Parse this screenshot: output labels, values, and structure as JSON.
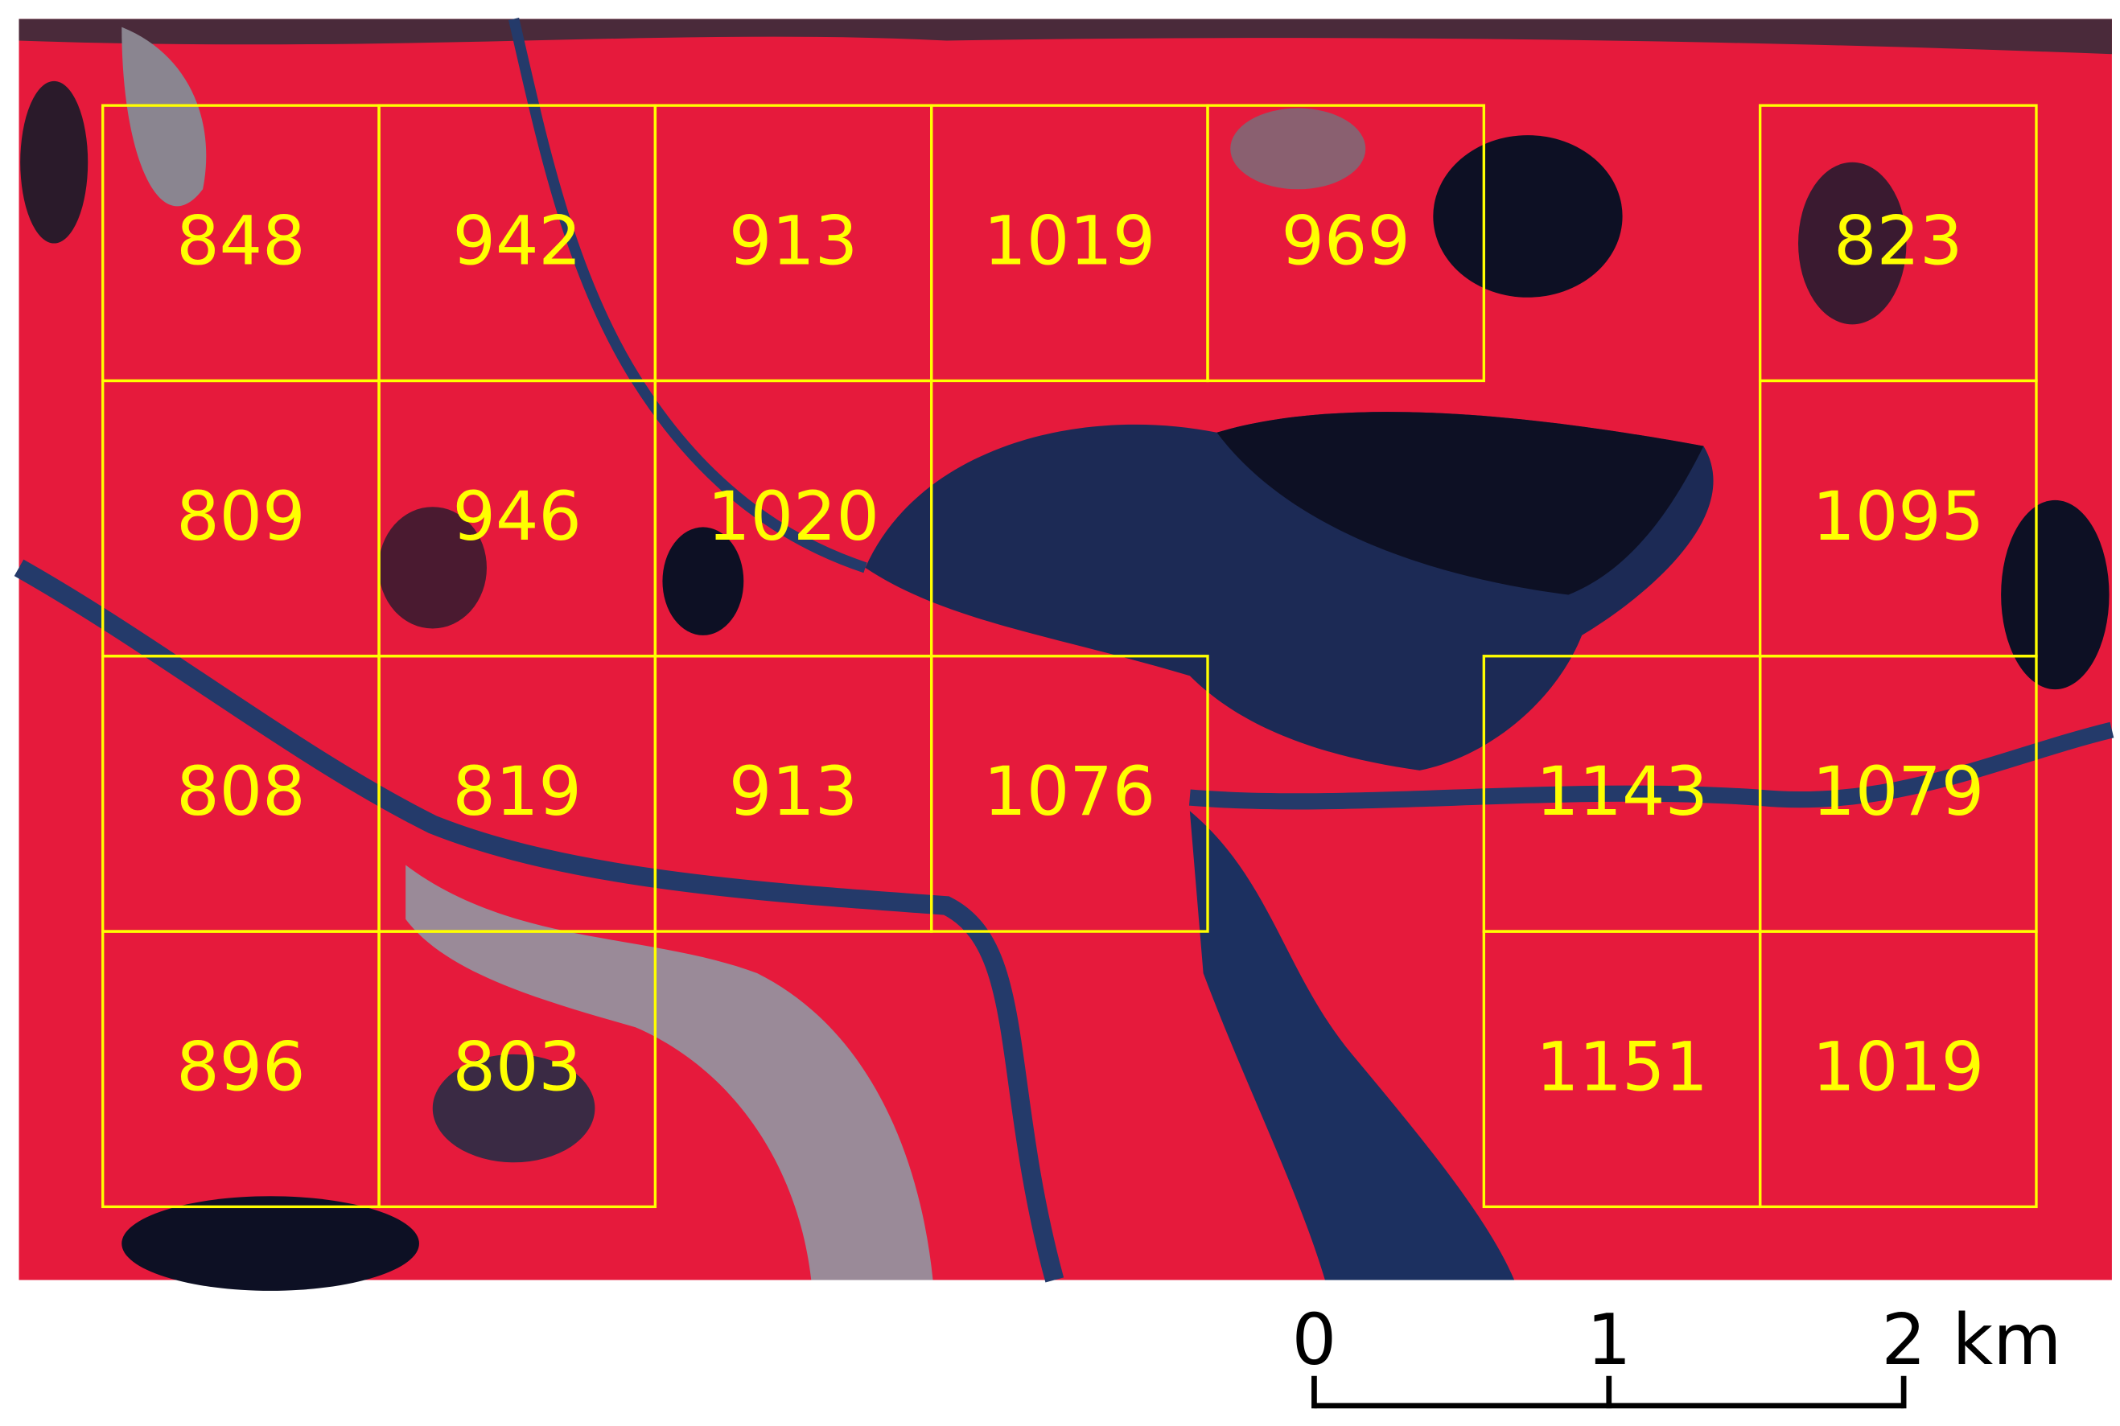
{
  "grid": {
    "rows": [
      [
        848,
        942,
        913,
        1019,
        969,
        null,
        823
      ],
      [
        809,
        946,
        1020,
        null,
        null,
        null,
        1095
      ],
      [
        808,
        819,
        913,
        1076,
        null,
        1143,
        1079
      ],
      [
        896,
        803,
        null,
        null,
        null,
        1151,
        1019
      ]
    ]
  },
  "scale_bar": {
    "ticks": [
      "0",
      "1",
      "2"
    ],
    "unit": "km"
  }
}
